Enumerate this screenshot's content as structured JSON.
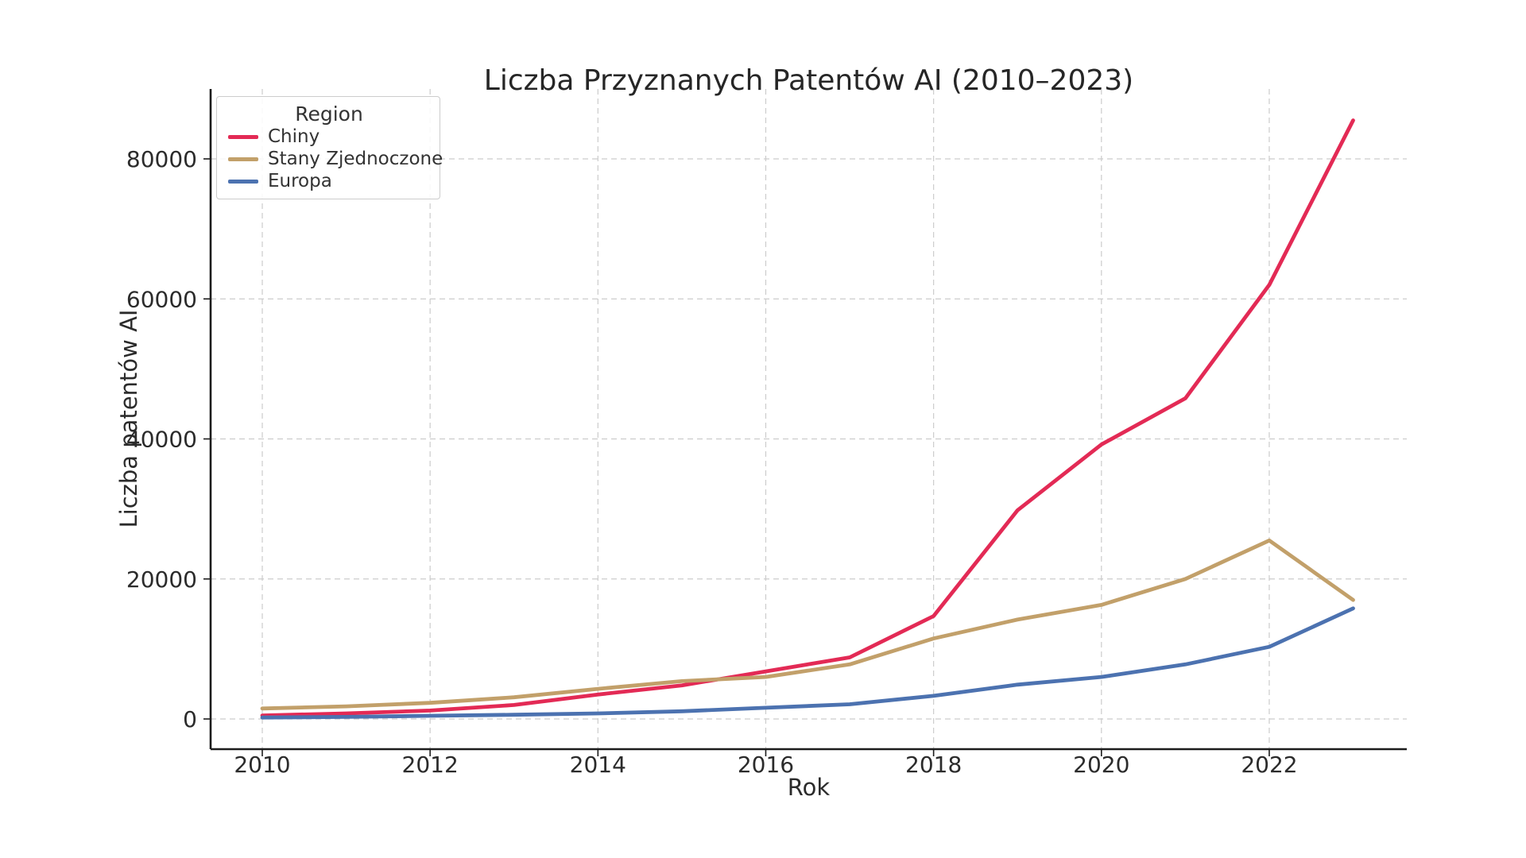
{
  "chart_data": {
    "type": "line",
    "title": "Liczba Przyznanych Patentów AI (2010–2023)",
    "xlabel": "Rok",
    "ylabel": "Liczba patentów AI",
    "x": [
      2010,
      2011,
      2012,
      2013,
      2014,
      2015,
      2016,
      2017,
      2018,
      2019,
      2020,
      2021,
      2022,
      2023
    ],
    "series": [
      {
        "name": "Chiny",
        "color": "#E32A55",
        "values": [
          500,
          800,
          1200,
          2000,
          3500,
          4800,
          6800,
          8800,
          14700,
          29800,
          39200,
          45800,
          62000,
          85500
        ]
      },
      {
        "name": "Stany Zjednoczone",
        "color": "#C2A06A",
        "values": [
          1500,
          1800,
          2300,
          3100,
          4300,
          5400,
          6000,
          7800,
          11500,
          14200,
          16300,
          20000,
          25500,
          17000
        ]
      },
      {
        "name": "Europa",
        "color": "#4C72B0",
        "values": [
          200,
          300,
          450,
          600,
          800,
          1100,
          1600,
          2100,
          3300,
          4900,
          6000,
          7800,
          10300,
          15800
        ]
      }
    ],
    "legend": {
      "title": "Region",
      "position": "upper left"
    },
    "xticks": [
      2010,
      2012,
      2014,
      2016,
      2018,
      2020,
      2022
    ],
    "yticks": [
      0,
      20000,
      40000,
      60000,
      80000
    ],
    "xlim": [
      2009.4,
      2023.65
    ],
    "ylim": [
      -4300,
      90000
    ],
    "grid": true,
    "grid_style": "dashed"
  },
  "colors": {
    "grid": "#cccccc",
    "spine": "#1c1c1c",
    "tick_text": "#2b2b2b"
  }
}
